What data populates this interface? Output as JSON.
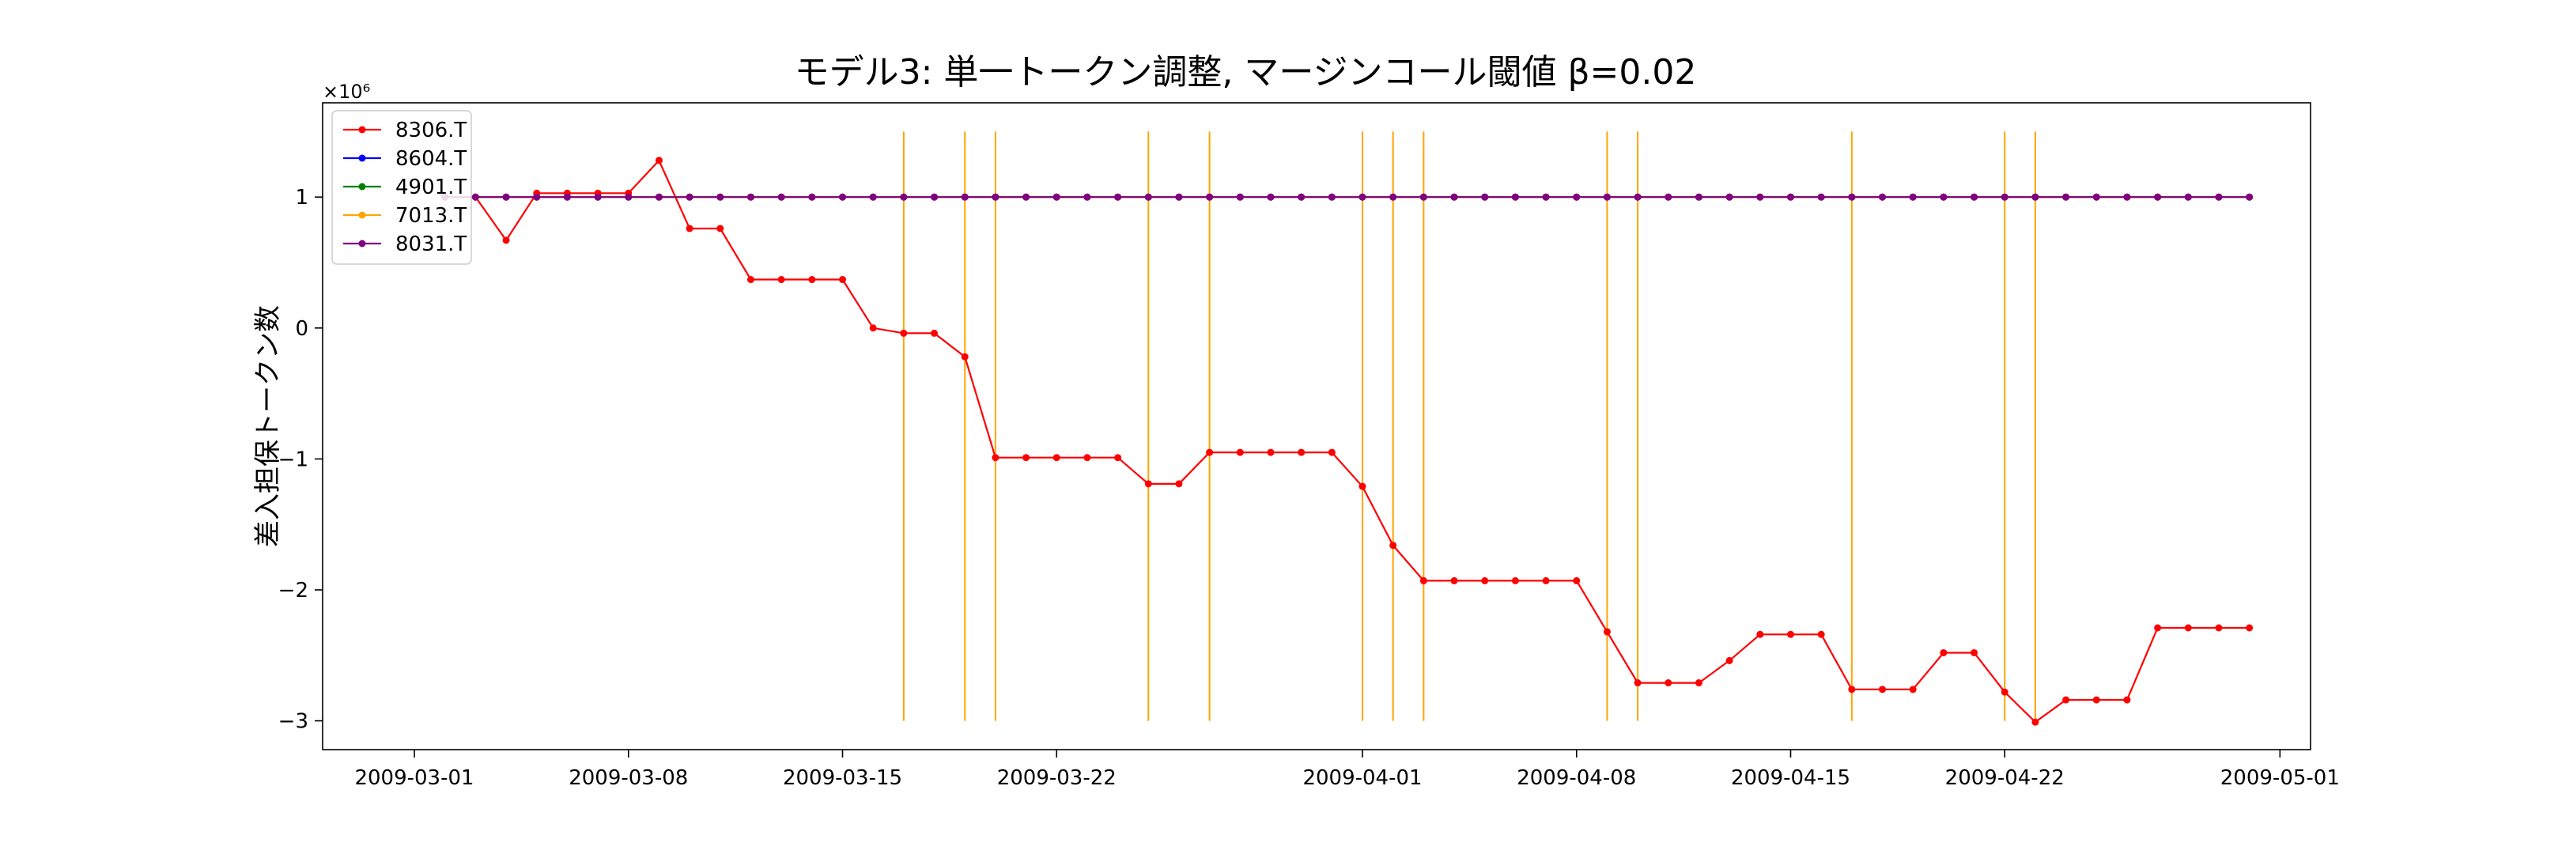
{
  "chart_data": {
    "type": "line",
    "title": "モデル3: 単一トークン調整, マージンコール閾値 β=0.02",
    "xlabel": "",
    "ylabel": "差入担保トークン数",
    "y_offset_label": "×10⁶",
    "x_range": [
      "2009-02-26",
      "2009-05-02"
    ],
    "ylim": [
      -3.22,
      1.72
    ],
    "y_scale": 1000000,
    "x_ticks": [
      "2009-03-01",
      "2009-03-08",
      "2009-03-15",
      "2009-03-22",
      "2009-04-01",
      "2009-04-08",
      "2009-04-15",
      "2009-04-22",
      "2009-05-01"
    ],
    "y_ticks": [
      1,
      0,
      -1,
      -2,
      -3
    ],
    "y_tick_labels": [
      "1",
      "0",
      "−1",
      "−2",
      "−3"
    ],
    "grid": false,
    "legend_position": "upper-left",
    "dates": [
      "2009-03-02",
      "2009-03-03",
      "2009-03-04",
      "2009-03-05",
      "2009-03-06",
      "2009-03-07",
      "2009-03-08",
      "2009-03-09",
      "2009-03-10",
      "2009-03-11",
      "2009-03-12",
      "2009-03-13",
      "2009-03-14",
      "2009-03-15",
      "2009-03-16",
      "2009-03-17",
      "2009-03-18",
      "2009-03-19",
      "2009-03-20",
      "2009-03-21",
      "2009-03-22",
      "2009-03-23",
      "2009-03-24",
      "2009-03-25",
      "2009-03-26",
      "2009-03-27",
      "2009-03-28",
      "2009-03-29",
      "2009-03-30",
      "2009-03-31",
      "2009-04-01",
      "2009-04-02",
      "2009-04-03",
      "2009-04-04",
      "2009-04-05",
      "2009-04-06",
      "2009-04-07",
      "2009-04-08",
      "2009-04-09",
      "2009-04-10",
      "2009-04-11",
      "2009-04-12",
      "2009-04-13",
      "2009-04-14",
      "2009-04-15",
      "2009-04-16",
      "2009-04-17",
      "2009-04-18",
      "2009-04-19",
      "2009-04-20",
      "2009-04-21",
      "2009-04-22",
      "2009-04-23",
      "2009-04-24",
      "2009-04-25",
      "2009-04-26",
      "2009-04-27",
      "2009-04-28",
      "2009-04-29",
      "2009-04-30"
    ],
    "series": [
      {
        "name": "8306.T",
        "color": "#ff0000",
        "values": [
          1.0,
          1.0,
          0.67,
          1.03,
          1.03,
          1.03,
          1.03,
          1.28,
          0.76,
          0.76,
          0.37,
          0.37,
          0.37,
          0.37,
          0.0,
          -0.04,
          -0.04,
          -0.22,
          -0.99,
          -0.99,
          -0.99,
          -0.99,
          -0.99,
          -1.19,
          -1.19,
          -0.95,
          -0.95,
          -0.95,
          -0.95,
          -0.95,
          -1.21,
          -1.66,
          -1.93,
          -1.93,
          -1.93,
          -1.93,
          -1.93,
          -1.93,
          -2.32,
          -2.71,
          -2.71,
          -2.71,
          -2.54,
          -2.34,
          -2.34,
          -2.34,
          -2.76,
          -2.76,
          -2.76,
          -2.48,
          -2.48,
          -2.78,
          -3.01,
          -2.84,
          -2.84,
          -2.84,
          -2.29,
          -2.29,
          -2.29,
          -2.29
        ]
      },
      {
        "name": "8604.T",
        "color": "#0000ff",
        "values": [
          1,
          1,
          1,
          1,
          1,
          1,
          1,
          1,
          1,
          1,
          1,
          1,
          1,
          1,
          1,
          1,
          1,
          1,
          1,
          1,
          1,
          1,
          1,
          1,
          1,
          1,
          1,
          1,
          1,
          1,
          1,
          1,
          1,
          1,
          1,
          1,
          1,
          1,
          1,
          1,
          1,
          1,
          1,
          1,
          1,
          1,
          1,
          1,
          1,
          1,
          1,
          1,
          1,
          1,
          1,
          1,
          1,
          1,
          1,
          1
        ]
      },
      {
        "name": "4901.T",
        "color": "#008000",
        "values": [
          1,
          1,
          1,
          1,
          1,
          1,
          1,
          1,
          1,
          1,
          1,
          1,
          1,
          1,
          1,
          1,
          1,
          1,
          1,
          1,
          1,
          1,
          1,
          1,
          1,
          1,
          1,
          1,
          1,
          1,
          1,
          1,
          1,
          1,
          1,
          1,
          1,
          1,
          1,
          1,
          1,
          1,
          1,
          1,
          1,
          1,
          1,
          1,
          1,
          1,
          1,
          1,
          1,
          1,
          1,
          1,
          1,
          1,
          1,
          1
        ]
      },
      {
        "name": "7013.T",
        "color": "#ffa500",
        "values": [
          1,
          1,
          1,
          1,
          1,
          1,
          1,
          1,
          1,
          1,
          1,
          1,
          1,
          1,
          1,
          1,
          1,
          1,
          1,
          1,
          1,
          1,
          1,
          1,
          1,
          1,
          1,
          1,
          1,
          1,
          1,
          1,
          1,
          1,
          1,
          1,
          1,
          1,
          1,
          1,
          1,
          1,
          1,
          1,
          1,
          1,
          1,
          1,
          1,
          1,
          1,
          1,
          1,
          1,
          1,
          1,
          1,
          1,
          1,
          1
        ]
      },
      {
        "name": "8031.T",
        "color": "#800080",
        "values": [
          1,
          1,
          1,
          1,
          1,
          1,
          1,
          1,
          1,
          1,
          1,
          1,
          1,
          1,
          1,
          1,
          1,
          1,
          1,
          1,
          1,
          1,
          1,
          1,
          1,
          1,
          1,
          1,
          1,
          1,
          1,
          1,
          1,
          1,
          1,
          1,
          1,
          1,
          1,
          1,
          1,
          1,
          1,
          1,
          1,
          1,
          1,
          1,
          1,
          1,
          1,
          1,
          1,
          1,
          1,
          1,
          1,
          1,
          1,
          1
        ]
      }
    ],
    "margin_call_lines": {
      "color": "#ffa500",
      "dates": [
        "2009-03-17",
        "2009-03-19",
        "2009-03-20",
        "2009-03-25",
        "2009-03-27",
        "2009-04-01",
        "2009-04-02",
        "2009-04-03",
        "2009-04-09",
        "2009-04-10",
        "2009-04-17",
        "2009-04-22",
        "2009-04-23"
      ],
      "y_range": [
        -3.0,
        1.5
      ]
    }
  }
}
